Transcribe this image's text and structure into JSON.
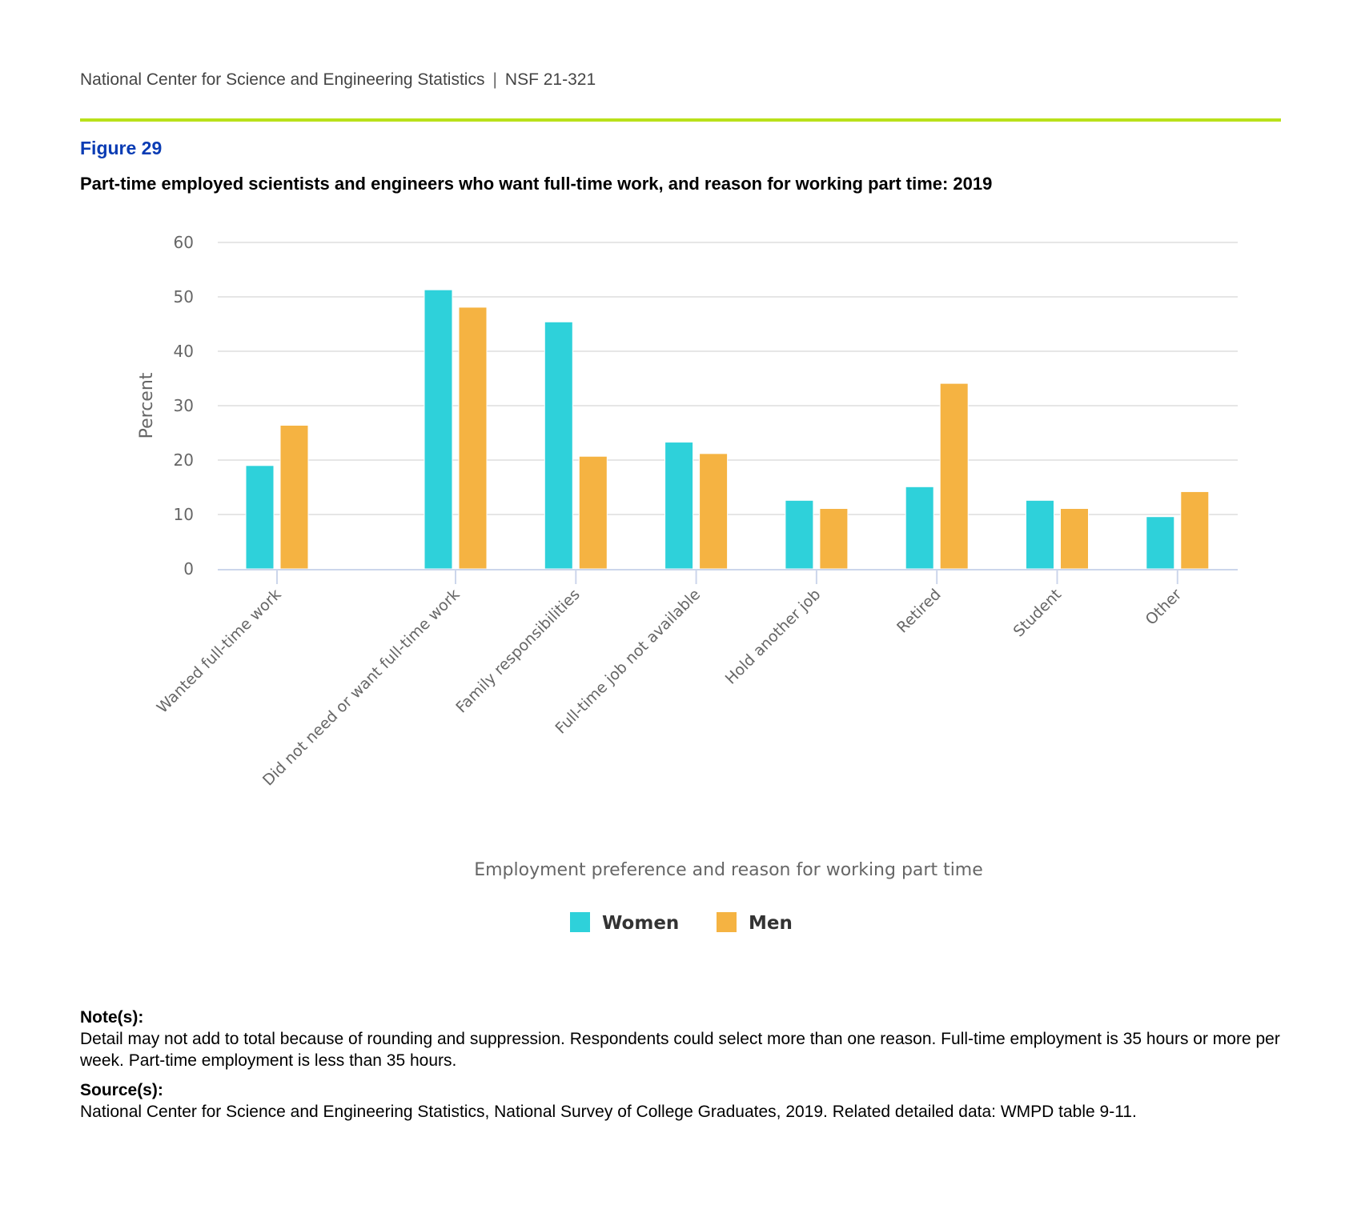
{
  "header": {
    "organization": "National Center for Science and Engineering Statistics",
    "separator": "|",
    "report_id": "NSF 21-321",
    "rule_color": "#B9E11A"
  },
  "figure": {
    "label": "Figure 29",
    "title": "Part-time employed scientists and engineers who want full-time work, and reason for working part time: 2019"
  },
  "chart_data": {
    "type": "bar",
    "title": "Part-time employed scientists and engineers who want full-time work, and reason for working part time: 2019",
    "xlabel": "Employment preference and reason for working part time",
    "ylabel": "Percent",
    "ylim": [
      0,
      60
    ],
    "yticks": [
      0,
      10,
      20,
      30,
      40,
      50,
      60
    ],
    "grid": true,
    "legend_position": "bottom-center",
    "categories": [
      "Wanted full-time work",
      "Did not need or want full-time work",
      "Family responsibilities",
      "Full-time job not available",
      "Hold another job",
      "Retired",
      "Student",
      "Other"
    ],
    "series": [
      {
        "name": "Women",
        "color": "#2ED1DA",
        "values": [
          19.0,
          51.3,
          45.4,
          23.3,
          12.6,
          15.1,
          12.6,
          9.6
        ]
      },
      {
        "name": "Men",
        "color": "#F5B342",
        "values": [
          26.4,
          48.1,
          20.7,
          21.2,
          11.1,
          34.1,
          11.1,
          14.2
        ]
      }
    ]
  },
  "notes": {
    "notes_heading": "Note(s):",
    "notes_text": "Detail may not add to total because of rounding and suppression. Respondents could select more than one reason. Full-time employment is 35 hours or more per week. Part-time employment is less than 35 hours.",
    "source_heading": "Source(s):",
    "source_text": "National Center for Science and Engineering Statistics, National Survey of College Graduates, 2019. Related detailed data: WMPD table 9-11."
  }
}
